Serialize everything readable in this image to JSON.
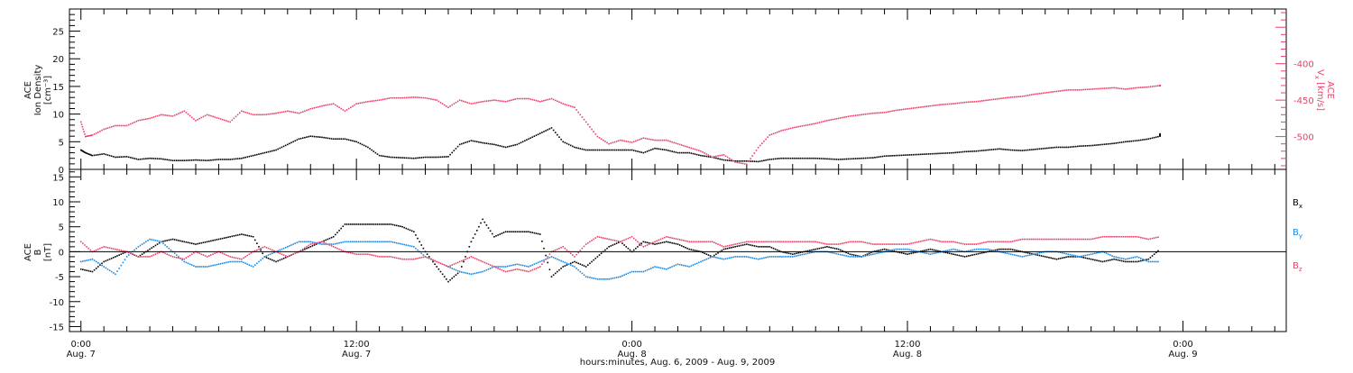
{
  "chart_data": [
    {
      "type": "scatter",
      "panel": "top",
      "ylabel_lines": [
        "ACE",
        "Ion Density",
        "[cm⁻³]"
      ],
      "ylim": [
        0,
        29
      ],
      "yticks": [
        "0",
        "5",
        "10",
        "15",
        "20",
        "25"
      ],
      "y2label_lines": [
        "ACE",
        "V",
        "x",
        " [km/s]"
      ],
      "y2lim": [
        -545,
        -325
      ],
      "y2ticks": [
        "-400",
        "-450",
        "-500"
      ],
      "series": [
        {
          "color": "#000000",
          "axis": "left",
          "x": [
            0,
            0.2,
            0.5,
            1,
            1.5,
            2,
            2.5,
            3,
            3.5,
            4,
            4.5,
            5,
            5.5,
            6,
            6.5,
            7,
            7.5,
            8,
            8.5,
            9,
            9.5,
            10,
            10.5,
            11,
            11.5,
            12,
            12.5,
            13,
            13.5,
            14,
            14.5,
            15,
            15.5,
            16,
            16.5,
            17,
            17.5,
            18,
            18.5,
            19,
            19.5,
            20,
            20.5,
            21,
            21.5,
            22,
            22.5,
            23,
            23.5,
            24,
            24.5,
            25,
            25.5,
            26,
            26.5,
            27,
            27.5,
            28,
            28.5,
            29,
            29.5,
            30,
            30.5,
            31,
            31.5,
            32,
            32.5,
            33,
            33.5,
            34,
            34.5,
            35,
            35.5,
            36,
            36.5,
            37,
            37.5,
            38,
            38.5,
            39,
            39.5,
            40,
            40.5,
            41,
            41.5,
            42,
            42.5,
            43,
            43.5,
            44,
            44.5,
            45,
            45.5,
            46,
            46.5,
            47,
            47
          ],
          "y": [
            3.5,
            3,
            2.5,
            2.8,
            2.2,
            2.3,
            1.8,
            2,
            1.9,
            1.6,
            1.6,
            1.7,
            1.6,
            1.8,
            1.8,
            2,
            2.5,
            3,
            3.5,
            4.5,
            5.5,
            6,
            5.8,
            5.5,
            5.5,
            5,
            4,
            2.5,
            2.2,
            2.1,
            2,
            2.2,
            2.2,
            2.3,
            4.5,
            5.2,
            4.8,
            4.5,
            4,
            4.5,
            5.5,
            6.5,
            7.5,
            5,
            4,
            3.5,
            3.5,
            3.5,
            3.5,
            3.5,
            3,
            3.8,
            3.5,
            3,
            3,
            2.5,
            2.2,
            1.7,
            1.5,
            1.5,
            1.4,
            1.8,
            2,
            2,
            2,
            2,
            1.9,
            1.8,
            1.9,
            2,
            2.1,
            2.4,
            2.5,
            2.6,
            2.7,
            2.8,
            2.9,
            3,
            3.2,
            3.3,
            3.5,
            3.7,
            3.5,
            3.4,
            3.6,
            3.8,
            4,
            4,
            4.2,
            4.3,
            4.5,
            4.7,
            5,
            5.2,
            5.5,
            6,
            6.5
          ]
        },
        {
          "color": "#e8426a",
          "axis": "right",
          "x": [
            0,
            0.2,
            0.5,
            1,
            1.5,
            2,
            2.5,
            3,
            3.5,
            4,
            4.5,
            5,
            5.5,
            6,
            6.5,
            7,
            7.5,
            8,
            8.5,
            9,
            9.5,
            10,
            10.5,
            11,
            11.5,
            12,
            12.5,
            13,
            13.5,
            14,
            14.5,
            15,
            15.5,
            16,
            16.5,
            17,
            17.5,
            18,
            18.5,
            19,
            19.5,
            20,
            20.5,
            21,
            21.5,
            22,
            22.5,
            23,
            23.5,
            24,
            24.5,
            25,
            25.5,
            26,
            26.5,
            27,
            27.5,
            28,
            28.5,
            29,
            29.5,
            30,
            30.5,
            31,
            31.5,
            32,
            32.5,
            33,
            33.5,
            34,
            34.5,
            35,
            35.5,
            36,
            36.5,
            37,
            37.5,
            38,
            38.5,
            39,
            39.5,
            40,
            40.5,
            41,
            41.5,
            42,
            42.5,
            43,
            43.5,
            44,
            44.5,
            45,
            45.5,
            46,
            46.5,
            47,
            47
          ],
          "y": [
            -480,
            -500,
            -498,
            -490,
            -485,
            -485,
            -478,
            -475,
            -470,
            -472,
            -465,
            -478,
            -470,
            -475,
            -480,
            -465,
            -470,
            -470,
            -468,
            -465,
            -468,
            -462,
            -458,
            -455,
            -465,
            -455,
            -452,
            -450,
            -447,
            -447,
            -446,
            -447,
            -450,
            -460,
            -450,
            -455,
            -452,
            -450,
            -452,
            -448,
            -448,
            -452,
            -448,
            -455,
            -460,
            -480,
            -500,
            -510,
            -505,
            -508,
            -502,
            -505,
            -505,
            -510,
            -515,
            -520,
            -528,
            -525,
            -535,
            -538,
            -515,
            -498,
            -492,
            -488,
            -485,
            -482,
            -478,
            -475,
            -472,
            -470,
            -468,
            -467,
            -464,
            -462,
            -460,
            -458,
            -456,
            -455,
            -453,
            -452,
            -450,
            -448,
            -446,
            -445,
            -442,
            -440,
            -438,
            -436,
            -436,
            -435,
            -434,
            -433,
            -435,
            -433,
            -432,
            -430,
            -430
          ]
        }
      ]
    },
    {
      "type": "scatter",
      "panel": "bottom",
      "ylabel_lines": [
        "ACE",
        "B",
        "[nT]"
      ],
      "ylim": [
        -16,
        16.5
      ],
      "yticks": [
        "-15",
        "-10",
        "-5",
        "0",
        "5",
        "10",
        "15"
      ],
      "zero_line": true,
      "legend": [
        "B",
        "B",
        "B"
      ],
      "legend_subscripts": [
        "x",
        "y",
        "z"
      ],
      "legend_placement": "right",
      "series": [
        {
          "color": "#000000",
          "x": [
            0,
            0.5,
            1,
            1.5,
            2,
            2.5,
            3,
            3.5,
            4,
            4.5,
            5,
            5.5,
            6,
            6.5,
            7,
            7.5,
            8,
            8.5,
            9,
            9.5,
            10,
            10.5,
            11,
            11.5,
            12,
            12.5,
            13,
            13.5,
            14,
            14.5,
            15,
            15.5,
            16,
            16.5,
            17,
            17.5,
            18,
            18.5,
            19,
            19.5,
            20,
            20.5,
            21,
            21.5,
            22,
            22.5,
            23,
            23.5,
            24,
            24.5,
            25,
            25.5,
            26,
            26.5,
            27,
            27.5,
            28,
            28.5,
            29,
            29.5,
            30,
            30.5,
            31,
            31.5,
            32,
            32.5,
            33,
            33.5,
            34,
            34.5,
            35,
            35.5,
            36,
            36.5,
            37,
            37.5,
            38,
            38.5,
            39,
            39.5,
            40,
            40.5,
            41,
            41.5,
            42,
            42.5,
            43,
            43.5,
            44,
            44.5,
            45,
            45.5,
            46,
            46.5,
            47
          ],
          "y": [
            -3.5,
            -4,
            -2,
            -1,
            0,
            -1,
            0.5,
            2,
            2.5,
            2,
            1.5,
            2,
            2.5,
            3,
            3.5,
            3,
            -1,
            -2,
            -1,
            0,
            1,
            2,
            3,
            5.5,
            5.5,
            5.5,
            5.5,
            5.5,
            5,
            4,
            0,
            -3,
            -6,
            -4,
            2,
            6.5,
            3,
            4,
            4,
            4,
            3.5,
            -5,
            -3,
            -2,
            -3,
            -1,
            1,
            2,
            0,
            2,
            1.5,
            2,
            1.5,
            0.5,
            0,
            -1,
            0.5,
            1,
            1.5,
            1,
            1,
            0,
            -0.5,
            0,
            0.5,
            1,
            0.5,
            -0.5,
            -1,
            0,
            0.5,
            0,
            -0.5,
            0,
            0.5,
            0,
            -0.5,
            -1,
            -0.5,
            0,
            0.5,
            0.5,
            0,
            -0.5,
            -1,
            -1.5,
            -1,
            -1,
            -1.5,
            -2,
            -1.5,
            -2,
            -2,
            -1.5,
            0.5
          ]
        },
        {
          "color": "#1a88e0",
          "x": [
            0,
            0.5,
            1,
            1.5,
            2,
            2.5,
            3,
            3.5,
            4,
            4.5,
            5,
            5.5,
            6,
            6.5,
            7,
            7.5,
            8,
            8.5,
            9,
            9.5,
            10,
            10.5,
            11,
            11.5,
            12,
            12.5,
            13,
            13.5,
            14,
            14.5,
            15,
            15.5,
            16,
            16.5,
            17,
            17.5,
            18,
            18.5,
            19,
            19.5,
            20,
            20.5,
            21,
            21.5,
            22,
            22.5,
            23,
            23.5,
            24,
            24.5,
            25,
            25.5,
            26,
            26.5,
            27,
            27.5,
            28,
            28.5,
            29,
            29.5,
            30,
            30.5,
            31,
            31.5,
            32,
            32.5,
            33,
            33.5,
            34,
            34.5,
            35,
            35.5,
            36,
            36.5,
            37,
            37.5,
            38,
            38.5,
            39,
            39.5,
            40,
            40.5,
            41,
            41.5,
            42,
            42.5,
            43,
            43.5,
            44,
            44.5,
            45,
            45.5,
            46,
            46.5,
            47
          ],
          "y": [
            -2,
            -1.5,
            -3,
            -4.5,
            -1,
            1,
            2.5,
            2,
            0,
            -2,
            -3,
            -3,
            -2.5,
            -2,
            -2,
            -3,
            -1,
            0,
            1,
            2,
            2,
            1.5,
            1.5,
            2,
            2,
            2,
            2,
            2,
            1.5,
            1,
            -1,
            -2,
            -3,
            -4,
            -4.5,
            -4,
            -3,
            -3,
            -2.5,
            -3,
            -2,
            -1,
            -2,
            -3,
            -5,
            -5.5,
            -5.5,
            -5,
            -4,
            -4,
            -3,
            -3.5,
            -2.5,
            -3,
            -2,
            -1,
            -1.5,
            -1,
            -1,
            -1.5,
            -1,
            -1,
            -1,
            -0.5,
            0,
            0,
            -0.5,
            -1,
            -1,
            -0.5,
            0,
            0.5,
            0.5,
            0,
            -0.5,
            0,
            0.5,
            0,
            0.5,
            0.5,
            0,
            -0.5,
            -1,
            -0.5,
            0,
            0,
            -0.5,
            -1,
            -0.5,
            0,
            -1,
            -1.5,
            -1,
            -2,
            -2
          ]
        },
        {
          "color": "#e8426a",
          "x": [
            0,
            0.5,
            1,
            1.5,
            2,
            2.5,
            3,
            3.5,
            4,
            4.5,
            5,
            5.5,
            6,
            6.5,
            7,
            7.5,
            8,
            8.5,
            9,
            9.5,
            10,
            10.5,
            11,
            11.5,
            12,
            12.5,
            13,
            13.5,
            14,
            14.5,
            15,
            15.5,
            16,
            16.5,
            17,
            17.5,
            18,
            18.5,
            19,
            19.5,
            20,
            20.5,
            21,
            21.5,
            22,
            22.5,
            23,
            23.5,
            24,
            24.5,
            25,
            25.5,
            26,
            26.5,
            27,
            27.5,
            28,
            28.5,
            29,
            29.5,
            30,
            30.5,
            31,
            31.5,
            32,
            32.5,
            33,
            33.5,
            34,
            34.5,
            35,
            35.5,
            36,
            36.5,
            37,
            37.5,
            38,
            38.5,
            39,
            39.5,
            40,
            40.5,
            41,
            41.5,
            42,
            42.5,
            43,
            43.5,
            44,
            44.5,
            45,
            45.5,
            46,
            46.5,
            47
          ],
          "y": [
            2,
            0,
            1,
            0.5,
            0,
            -1,
            -1,
            0,
            -1,
            -1.5,
            0,
            -1,
            0,
            -1,
            -1.5,
            0,
            1,
            0,
            -1,
            0,
            1.5,
            2,
            1,
            0,
            -0.5,
            -0.5,
            -1,
            -1,
            -1.5,
            -1.5,
            -1,
            -2,
            -3,
            -2,
            -1,
            -2,
            -3,
            -4,
            -3.5,
            -4,
            -3,
            0,
            1,
            -1,
            1.5,
            3,
            2.5,
            2,
            3,
            1,
            2,
            3,
            2.5,
            2,
            2,
            2,
            1,
            1.5,
            2,
            2,
            2,
            2,
            2,
            2,
            2,
            1.5,
            1.5,
            2,
            2,
            1.5,
            1.5,
            1.5,
            1.5,
            2,
            2.5,
            2,
            2,
            1.5,
            1.5,
            2,
            2,
            2,
            2.5,
            2.5,
            2.5,
            2.5,
            2.5,
            2.5,
            2.5,
            3,
            3,
            3,
            3,
            2.5,
            3
          ]
        }
      ]
    }
  ],
  "x_axis": {
    "range_hours": [
      -0.5,
      52.5
    ],
    "major_ticks_hours": [
      0,
      12,
      24,
      36,
      48
    ],
    "tick_time_labels": [
      "0:00",
      "12:00",
      "0:00",
      "12:00",
      "0:00"
    ],
    "tick_date_labels": [
      "Aug. 7",
      "Aug. 7",
      "Aug. 8",
      "Aug. 8",
      "Aug. 9"
    ],
    "title": "hours:minutes, Aug.  6, 2009 - Aug.  9, 2009"
  }
}
